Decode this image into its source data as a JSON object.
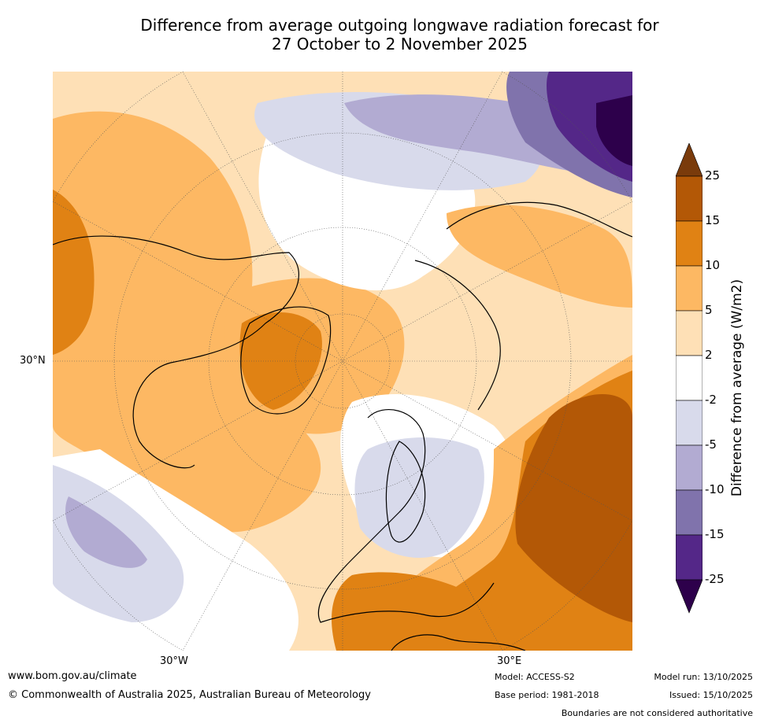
{
  "title": {
    "line1": "Difference from average outgoing longwave radiation forecast for",
    "line2": "27 October to 2 November 2025"
  },
  "map": {
    "region": "Northern Hemisphere polar stereographic view",
    "labels": {
      "lat_30n": "30°N",
      "lon_30w": "30°W",
      "lon_30e": "30°E"
    }
  },
  "colorbar": {
    "title": "Difference from average (W/m2)",
    "ticks": [
      "25",
      "15",
      "10",
      "5",
      "2",
      "-2",
      "-5",
      "-10",
      "-15",
      "-25"
    ],
    "bins": [
      {
        "range": "over 25",
        "color": "#7a3b0b"
      },
      {
        "range": "15 to 25",
        "color": "#b35806"
      },
      {
        "range": "10 to 15",
        "color": "#e08214"
      },
      {
        "range": "5 to 10",
        "color": "#fdb863"
      },
      {
        "range": "2 to 5",
        "color": "#fee0b6"
      },
      {
        "range": "-2 to 2",
        "color": "#ffffff"
      },
      {
        "range": "-5 to -2",
        "color": "#d8daeb"
      },
      {
        "range": "-10 to -5",
        "color": "#b2abd2"
      },
      {
        "range": "-15 to -10",
        "color": "#8073ac"
      },
      {
        "range": "-25 to -15",
        "color": "#542788"
      },
      {
        "range": "under -25",
        "color": "#2d004b"
      }
    ]
  },
  "footer": {
    "website": "www.bom.gov.au/climate",
    "copyright": "© Commonwealth of Australia 2025, Australian Bureau of Meteorology",
    "model": "Model: ACCESS-S2",
    "base_period": "Base period: 1981-2018",
    "model_run": "Model run: 13/10/2025",
    "issued": "Issued: 15/10/2025",
    "disclaimer": "Boundaries are not considered authoritative"
  }
}
